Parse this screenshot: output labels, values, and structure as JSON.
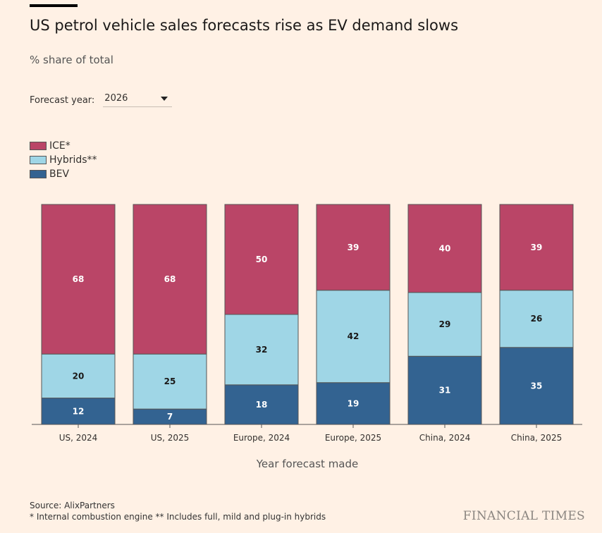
{
  "header": {
    "title": "US petrol vehicle sales forecasts rise as EV demand slows",
    "subtitle": "% share of total"
  },
  "control": {
    "label": "Forecast year:",
    "selected": "2026"
  },
  "chart_data": {
    "type": "bar",
    "stacked": true,
    "categories": [
      "US, 2024",
      "US, 2025",
      "Europe, 2024",
      "Europe, 2025",
      "China, 2024",
      "China, 2025"
    ],
    "series": [
      {
        "name": "BEV",
        "color": "#336391",
        "values": [
          12,
          7,
          18,
          19,
          31,
          35
        ]
      },
      {
        "name": "Hybrids**",
        "color": "#9fd6e6",
        "values": [
          20,
          25,
          32,
          42,
          29,
          26
        ]
      },
      {
        "name": "ICE*",
        "color": "#ba4567",
        "values": [
          68,
          68,
          50,
          39,
          40,
          39
        ]
      }
    ],
    "legend_order": [
      "ICE*",
      "Hybrids**",
      "BEV"
    ],
    "xlabel": "Year forecast made",
    "ylim": [
      0,
      100
    ],
    "legend_position": "top-left",
    "grid": false
  },
  "footer": {
    "source": "Source: AlixPartners",
    "note": "* Internal combustion engine ** Includes full, mild and plug-in hybrids",
    "brand": "FINANCIAL TIMES"
  }
}
